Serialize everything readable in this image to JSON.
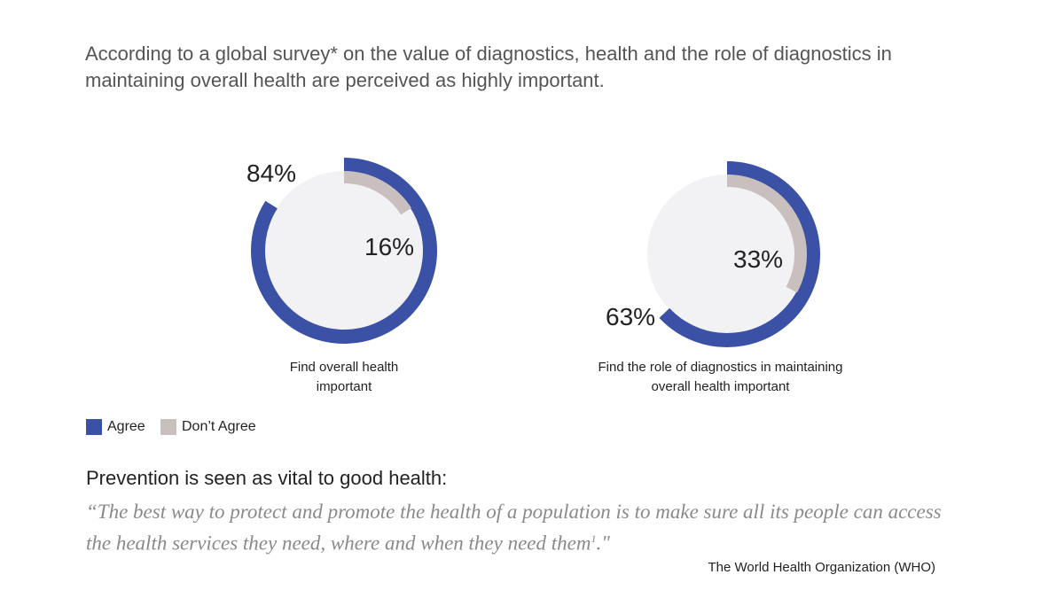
{
  "intro": "According to a global survey* on the value of diagnostics, health and the role of diagnostics in maintaining overall health are perceived as highly important.",
  "chart_data": [
    {
      "type": "donut",
      "title": "Find overall health important",
      "categories": [
        "Agree",
        "Don’t Agree"
      ],
      "values": [
        84,
        16
      ],
      "value_labels": [
        "84%",
        "16%"
      ],
      "colors": [
        "#3a51a6",
        "#c9bfbf"
      ]
    },
    {
      "type": "donut",
      "title": "Find the role of diagnostics in maintaining overall health important",
      "categories": [
        "Agree",
        "Don’t Agree"
      ],
      "values": [
        63,
        33
      ],
      "value_labels": [
        "63%",
        "33%"
      ],
      "colors": [
        "#3a51a6",
        "#c9bfbf"
      ]
    }
  ],
  "quote": {
    "heading": "Prevention is seen as vital to good health:",
    "text": "“The best way to protect and promote the health of a population is to make sure all its people can access the health services they need, where and when they need them",
    "footnote_marker": "1",
    "text_end": ".\"",
    "source": "The World Health Organization (WHO)"
  }
}
